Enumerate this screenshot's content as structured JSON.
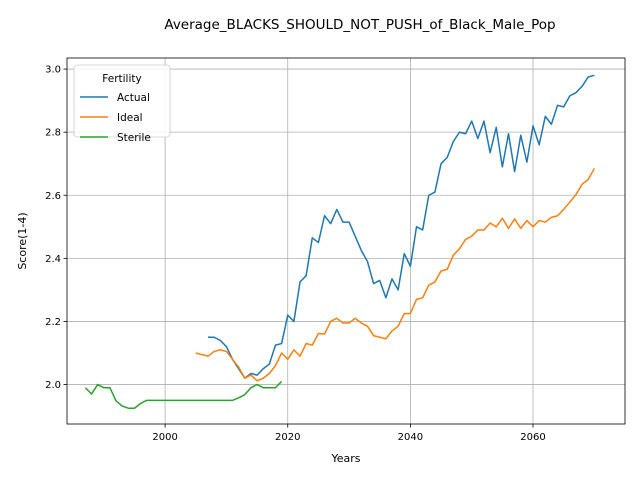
{
  "chart_data": {
    "type": "line",
    "title": "Average_BLACKS_SHOULD_NOT_PUSH_of_Black_Male_Pop",
    "xlabel": "Years",
    "ylabel": "Score(1-4)",
    "xlim": [
      1984,
      2075
    ],
    "ylim": [
      1.875,
      3.035
    ],
    "x_ticks": [
      2000,
      2020,
      2040,
      2060
    ],
    "y_ticks": [
      2.0,
      2.2,
      2.4,
      2.6,
      2.8,
      3.0
    ],
    "x_tick_labels": [
      "2000",
      "2020",
      "2040",
      "2060"
    ],
    "y_tick_labels": [
      "2.0",
      "2.2",
      "2.4",
      "2.6",
      "2.8",
      "3.0"
    ],
    "grid": true,
    "legend": {
      "title": "Fertility",
      "placement": "top-left"
    },
    "series": [
      {
        "name": "Actual",
        "color": "#1f77b4",
        "x": [
          2007,
          2008,
          2009,
          2010,
          2011,
          2012,
          2013,
          2014,
          2015,
          2016,
          2017,
          2018,
          2019,
          2020,
          2021,
          2022,
          2023,
          2024,
          2025,
          2026,
          2027,
          2028,
          2029,
          2030,
          2031,
          2032,
          2033,
          2034,
          2035,
          2036,
          2037,
          2038,
          2039,
          2040,
          2041,
          2042,
          2043,
          2044,
          2045,
          2046,
          2047,
          2048,
          2049,
          2050,
          2051,
          2052,
          2053,
          2054,
          2055,
          2056,
          2057,
          2058,
          2059,
          2060,
          2061,
          2062,
          2063,
          2064,
          2065,
          2066,
          2067,
          2068,
          2069,
          2070
        ],
        "y": [
          2.15,
          2.15,
          2.14,
          2.12,
          2.08,
          2.05,
          2.02,
          2.035,
          2.03,
          2.05,
          2.065,
          2.125,
          2.13,
          2.22,
          2.2,
          2.325,
          2.345,
          2.465,
          2.45,
          2.535,
          2.51,
          2.555,
          2.515,
          2.515,
          2.47,
          2.425,
          2.39,
          2.32,
          2.33,
          2.275,
          2.335,
          2.3,
          2.415,
          2.375,
          2.5,
          2.49,
          2.6,
          2.61,
          2.7,
          2.72,
          2.77,
          2.8,
          2.795,
          2.835,
          2.78,
          2.835,
          2.735,
          2.815,
          2.69,
          2.795,
          2.675,
          2.79,
          2.705,
          2.82,
          2.76,
          2.85,
          2.825,
          2.885,
          2.88,
          2.915,
          2.925,
          2.945,
          2.975,
          2.98
        ]
      },
      {
        "name": "Ideal",
        "color": "#ff7f0e",
        "x": [
          2005,
          2006,
          2007,
          2008,
          2009,
          2010,
          2011,
          2012,
          2013,
          2014,
          2015,
          2016,
          2017,
          2018,
          2019,
          2020,
          2021,
          2022,
          2023,
          2024,
          2025,
          2026,
          2027,
          2028,
          2029,
          2030,
          2031,
          2032,
          2033,
          2034,
          2035,
          2036,
          2037,
          2038,
          2039,
          2040,
          2041,
          2042,
          2043,
          2044,
          2045,
          2046,
          2047,
          2048,
          2049,
          2050,
          2051,
          2052,
          2053,
          2054,
          2055,
          2056,
          2057,
          2058,
          2059,
          2060,
          2061,
          2062,
          2063,
          2064,
          2065,
          2066,
          2067,
          2068,
          2069,
          2070
        ],
        "y": [
          2.1,
          2.095,
          2.09,
          2.105,
          2.11,
          2.105,
          2.08,
          2.055,
          2.02,
          2.03,
          2.012,
          2.02,
          2.035,
          2.06,
          2.1,
          2.08,
          2.11,
          2.09,
          2.13,
          2.125,
          2.162,
          2.16,
          2.2,
          2.21,
          2.195,
          2.195,
          2.21,
          2.195,
          2.185,
          2.155,
          2.15,
          2.145,
          2.17,
          2.185,
          2.225,
          2.225,
          2.27,
          2.275,
          2.315,
          2.325,
          2.36,
          2.365,
          2.41,
          2.43,
          2.46,
          2.47,
          2.49,
          2.49,
          2.512,
          2.5,
          2.527,
          2.495,
          2.525,
          2.495,
          2.52,
          2.5,
          2.52,
          2.515,
          2.53,
          2.535,
          2.555,
          2.578,
          2.602,
          2.635,
          2.65,
          2.685
        ]
      },
      {
        "name": "Sterile",
        "color": "#2ca02c",
        "x": [
          1987,
          1988,
          1989,
          1990,
          1991,
          1992,
          1993,
          1994,
          1995,
          1996,
          1997,
          1998,
          1999,
          2000,
          2001,
          2002,
          2003,
          2004,
          2005,
          2006,
          2007,
          2008,
          2009,
          2010,
          2011,
          2012,
          2013,
          2014,
          2015,
          2016,
          2017,
          2018,
          2019
        ],
        "y": [
          1.99,
          1.97,
          2.0,
          1.99,
          1.99,
          1.948,
          1.932,
          1.925,
          1.925,
          1.94,
          1.95,
          1.95,
          1.95,
          1.95,
          1.95,
          1.95,
          1.95,
          1.95,
          1.95,
          1.95,
          1.95,
          1.95,
          1.95,
          1.95,
          1.95,
          1.958,
          1.968,
          1.99,
          2.0,
          1.99,
          1.99,
          1.99,
          2.01
        ]
      }
    ]
  }
}
